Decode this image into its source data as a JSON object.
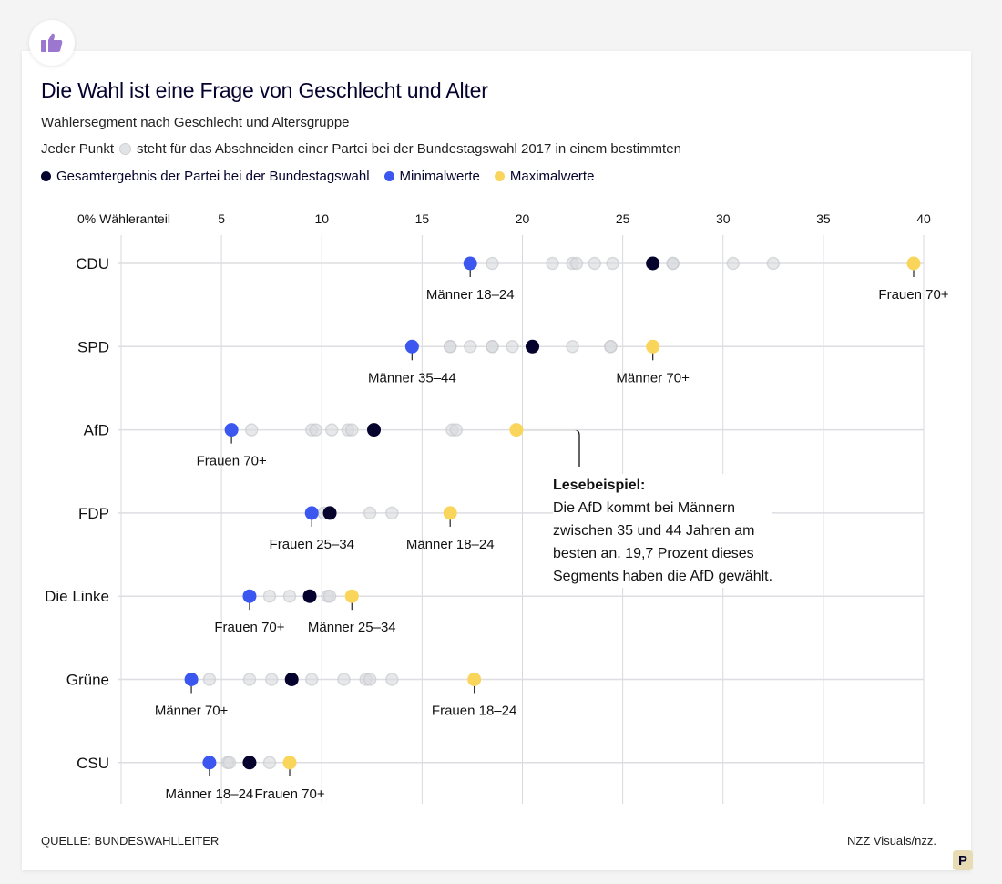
{
  "title": "Die Wahl ist eine Frage von Geschlecht und Alter",
  "subtitle": "Wählersegment nach Geschlecht und Altersgruppe",
  "legend": {
    "point_pre": "Jeder Punkt",
    "point_post": "steht für das Abschneiden einer Partei bei der Bundestagswahl 2017 in einem bestimmten",
    "total": "Gesamtergebnis der Partei bei der Bundestagswahl",
    "min": "Minimalwerte",
    "max": "Maximalwerte"
  },
  "colors": {
    "total": "#05032d",
    "min": "#3b57f0",
    "max": "#fad55c",
    "other": "#d7d8dc"
  },
  "source": "QUELLE: BUNDESWAHLLEITER",
  "credit": "NZZ Visuals/nzz.",
  "p_badge": "P",
  "header_icon": "thumbs-up-icon",
  "annotation": {
    "title": "Lesebeispiel:",
    "lines": [
      "Die AfD kommt bei Männern",
      "zwischen 35 und 44 Jahren am",
      "besten an. 19,7 Prozent dieses",
      "Segments haben die AfD gewählt."
    ]
  },
  "chart_data": {
    "type": "scatter",
    "xlim": [
      0,
      40
    ],
    "x_ticks": [
      0,
      5,
      10,
      15,
      20,
      25,
      30,
      35,
      40
    ],
    "x_tick_labels": [
      "0% Wähleranteil",
      "5",
      "10",
      "15",
      "20",
      "25",
      "30",
      "35",
      "40"
    ],
    "grid": true,
    "rows": [
      {
        "party": "CDU",
        "total": 26.5,
        "min": {
          "value": 17.4,
          "label": "Männer 18–24"
        },
        "max": {
          "value": 39.5,
          "label": "Frauen 70+"
        },
        "others": [
          18.5,
          21.5,
          22.5,
          22.7,
          23.6,
          24.5,
          27.5,
          27.5,
          30.5,
          32.5
        ]
      },
      {
        "party": "SPD",
        "total": 20.5,
        "min": {
          "value": 14.5,
          "label": "Männer 35–44"
        },
        "max": {
          "value": 26.5,
          "label": "Männer 70+"
        },
        "others": [
          16.4,
          16.4,
          17.4,
          18.5,
          18.5,
          19.5,
          22.5,
          24.4,
          24.4
        ]
      },
      {
        "party": "AfD",
        "total": 12.6,
        "min": {
          "value": 5.5,
          "label": "Frauen 70+"
        },
        "max": {
          "value": 19.7,
          "label": ""
        },
        "others": [
          6.5,
          9.5,
          9.7,
          10.5,
          11.3,
          11.5,
          16.5,
          16.7
        ]
      },
      {
        "party": "FDP",
        "total": 10.4,
        "min": {
          "value": 9.5,
          "label": "Frauen 25–34"
        },
        "max": {
          "value": 16.4,
          "label": "Männer 18–24"
        },
        "others": [
          10.1,
          12.4,
          13.5
        ]
      },
      {
        "party": "Die Linke",
        "total": 9.4,
        "min": {
          "value": 6.4,
          "label": "Frauen 70+"
        },
        "max": {
          "value": 11.5,
          "label": "Männer 25–34"
        },
        "others": [
          7.4,
          8.4,
          10.3,
          10.4
        ]
      },
      {
        "party": "Grüne",
        "total": 8.5,
        "min": {
          "value": 3.5,
          "label": "Männer 70+"
        },
        "max": {
          "value": 17.6,
          "label": "Frauen 18–24"
        },
        "others": [
          4.4,
          6.4,
          7.5,
          9.5,
          11.1,
          12.2,
          12.4,
          13.5
        ]
      },
      {
        "party": "CSU",
        "total": 6.4,
        "min": {
          "value": 4.4,
          "label": "Männer 18–24"
        },
        "max": {
          "value": 8.4,
          "label": "Frauen 70+"
        },
        "others": [
          5.3,
          5.4,
          7.4
        ]
      }
    ]
  }
}
